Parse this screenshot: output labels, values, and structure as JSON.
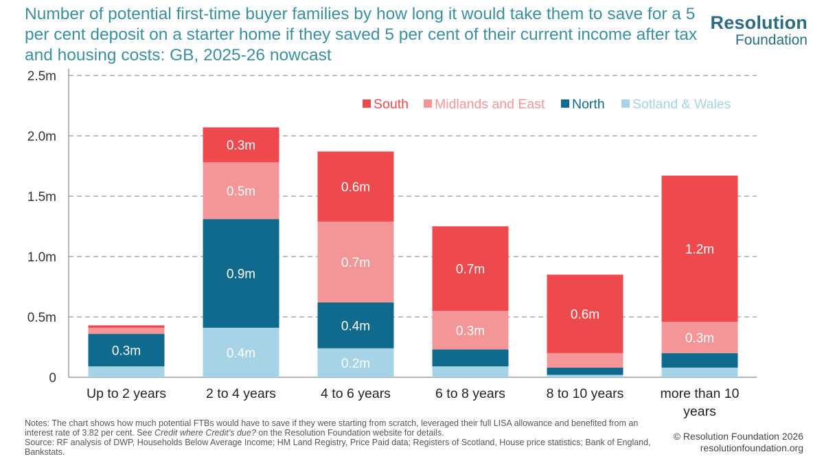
{
  "title": "Number of potential first-time buyer families by how long it would take them to save for a 5 per cent deposit on a starter home if they saved 5 per cent of their current income after tax and housing costs: GB, 2025-26 nowcast",
  "logo": {
    "line1": "Resolution",
    "line2": "Foundation"
  },
  "notes": {
    "line1": "Notes: The chart shows how much potential FTBs would have to save if they were starting from scratch, leveraged their full LISA allowance and benefited from an",
    "line2_pre": "interest rate of 3.82 per cent. See ",
    "line2_italic": "Credit where Credit’s due?",
    "line2_post": " on the Resolution Foundation website for details.",
    "line3": "Source: RF analysis of DWP, Households Below Average Income; HM Land Registry, Price Paid data; Registers of Scotland, House price statistics; Bank of England,",
    "line4": "Bankstats."
  },
  "copyright": {
    "line1": "© Resolution Foundation 2026",
    "line2": "resolutionfoundation.org"
  },
  "chart_data": {
    "type": "bar",
    "stacked": true,
    "categories": [
      "Up to 2 years",
      "2 to 4 years",
      "4 to 6 years",
      "6 to 8 years",
      "8 to 10 years",
      "more than 10 years"
    ],
    "category_lines": [
      [
        "Up to 2 years"
      ],
      [
        "2 to 4 years"
      ],
      [
        "4 to 6 years"
      ],
      [
        "6 to 8 years"
      ],
      [
        "8 to 10 years"
      ],
      [
        "more than 10",
        "years"
      ]
    ],
    "ylim": [
      0,
      2.5
    ],
    "yticks": [
      {
        "value": 0,
        "label": "0"
      },
      {
        "value": 0.5,
        "label": "0.5m"
      },
      {
        "value": 1.0,
        "label": "1.0m"
      },
      {
        "value": 1.5,
        "label": "1.5m"
      },
      {
        "value": 2.0,
        "label": "2.0m"
      },
      {
        "value": 2.5,
        "label": "2.5m"
      }
    ],
    "grid": true,
    "legend_position": "top-right",
    "series": [
      {
        "name": "Sotland & Wales",
        "color": "#a6d3e6",
        "values": [
          0.09,
          0.41,
          0.24,
          0.09,
          0.02,
          0.08
        ],
        "labels": [
          "",
          "0.4m",
          "0.2m",
          "",
          "",
          ""
        ]
      },
      {
        "name": "North",
        "color": "#0f6a8e",
        "values": [
          0.27,
          0.9,
          0.38,
          0.14,
          0.06,
          0.12
        ],
        "labels": [
          "0.3m",
          "0.9m",
          "0.4m",
          "",
          "",
          ""
        ]
      },
      {
        "name": "Midlands and East",
        "color": "#f49598",
        "values": [
          0.05,
          0.47,
          0.67,
          0.32,
          0.12,
          0.26
        ],
        "labels": [
          "",
          "0.5m",
          "0.7m",
          "0.3m",
          "",
          "0.3m"
        ]
      },
      {
        "name": "South",
        "color": "#ee4a4e",
        "values": [
          0.02,
          0.29,
          0.58,
          0.7,
          0.65,
          1.21
        ],
        "labels": [
          "",
          "0.3m",
          "0.6m",
          "0.7m",
          "0.6m",
          "1.2m"
        ]
      }
    ],
    "legend_order": [
      "South",
      "Midlands and East",
      "North",
      "Sotland & Wales"
    ]
  }
}
